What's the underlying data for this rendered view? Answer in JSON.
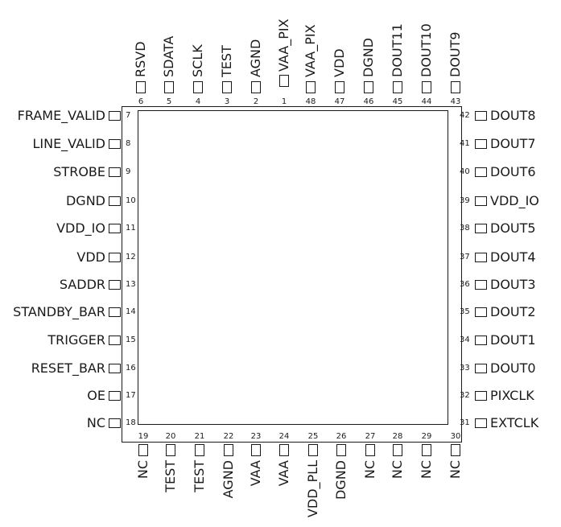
{
  "pins": {
    "top": [
      {
        "num": "6",
        "name": "RSVD"
      },
      {
        "num": "5",
        "name": "SDATA"
      },
      {
        "num": "4",
        "name": "SCLK"
      },
      {
        "num": "3",
        "name": "TEST"
      },
      {
        "num": "2",
        "name": "AGND"
      },
      {
        "num": "1",
        "name": "VAA_PIX"
      },
      {
        "num": "48",
        "name": "VAA_PIX"
      },
      {
        "num": "47",
        "name": "VDD"
      },
      {
        "num": "46",
        "name": "DGND"
      },
      {
        "num": "45",
        "name": "DOUT11"
      },
      {
        "num": "44",
        "name": "DOUT10"
      },
      {
        "num": "43",
        "name": "DOUT9"
      }
    ],
    "left": [
      {
        "num": "7",
        "name": "FRAME_VALID"
      },
      {
        "num": "8",
        "name": "LINE_VALID"
      },
      {
        "num": "9",
        "name": "STROBE"
      },
      {
        "num": "10",
        "name": "DGND"
      },
      {
        "num": "11",
        "name": "VDD_IO"
      },
      {
        "num": "12",
        "name": "VDD"
      },
      {
        "num": "13",
        "name": "SADDR"
      },
      {
        "num": "14",
        "name": "STANDBY_BAR"
      },
      {
        "num": "15",
        "name": "TRIGGER"
      },
      {
        "num": "16",
        "name": "RESET_BAR"
      },
      {
        "num": "17",
        "name": "OE"
      },
      {
        "num": "18",
        "name": "NC"
      }
    ],
    "right": [
      {
        "num": "42",
        "name": "DOUT8"
      },
      {
        "num": "41",
        "name": "DOUT7"
      },
      {
        "num": "40",
        "name": "DOUT6"
      },
      {
        "num": "39",
        "name": "VDD_IO"
      },
      {
        "num": "38",
        "name": "DOUT5"
      },
      {
        "num": "37",
        "name": "DOUT4"
      },
      {
        "num": "36",
        "name": "DOUT3"
      },
      {
        "num": "35",
        "name": "DOUT2"
      },
      {
        "num": "34",
        "name": "DOUT1"
      },
      {
        "num": "33",
        "name": "DOUT0"
      },
      {
        "num": "32",
        "name": "PIXCLK"
      },
      {
        "num": "31",
        "name": "EXTCLK"
      }
    ],
    "bottom": [
      {
        "num": "19",
        "name": "NC"
      },
      {
        "num": "20",
        "name": "TEST"
      },
      {
        "num": "21",
        "name": "TEST"
      },
      {
        "num": "22",
        "name": "AGND"
      },
      {
        "num": "23",
        "name": "VAA"
      },
      {
        "num": "24",
        "name": "VAA"
      },
      {
        "num": "25",
        "name": "VDD_PLL"
      },
      {
        "num": "26",
        "name": "DGND"
      },
      {
        "num": "27",
        "name": "NC"
      },
      {
        "num": "28",
        "name": "NC"
      },
      {
        "num": "29",
        "name": "NC"
      },
      {
        "num": "30",
        "name": "NC"
      }
    ]
  }
}
